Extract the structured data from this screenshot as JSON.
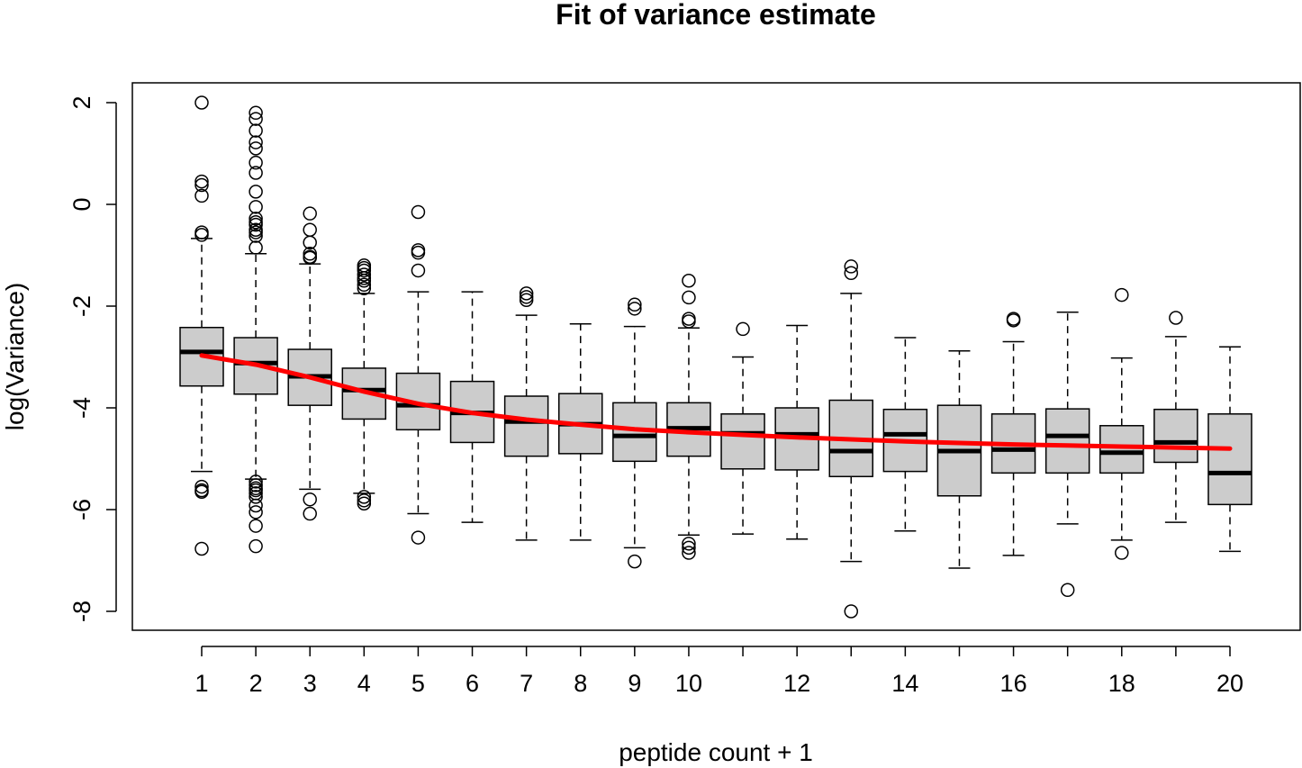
{
  "chart_data": {
    "type": "boxplot",
    "title": "Fit of variance estimate",
    "xlabel": "peptide count + 1",
    "ylabel": "log(Variance)",
    "ylim": [
      -8.2,
      2.4
    ],
    "yticks": [
      2,
      0,
      -2,
      -4,
      -6,
      -8
    ],
    "xticks": [
      1,
      2,
      3,
      4,
      5,
      6,
      7,
      8,
      9,
      10,
      12,
      14,
      16,
      18,
      20
    ],
    "xtick_marks": [
      1,
      2,
      3,
      4,
      5,
      6,
      7,
      8,
      9,
      10,
      11,
      12,
      13,
      14,
      15,
      16,
      17,
      18,
      19,
      20
    ],
    "box_fill": "#cccccc",
    "fit_color": "#ff0000",
    "boxes": [
      {
        "x": 1,
        "q1": -3.57,
        "median": -2.9,
        "q3": -2.42,
        "wlo": -5.25,
        "whi": -0.67,
        "outliers": [
          2.0,
          0.45,
          0.38,
          0.17,
          -0.55,
          -0.6,
          -5.55,
          -5.62,
          -5.65,
          -6.77
        ]
      },
      {
        "x": 2,
        "q1": -3.73,
        "median": -3.12,
        "q3": -2.62,
        "wlo": -5.4,
        "whi": -0.97,
        "outliers": [
          1.8,
          1.68,
          1.45,
          1.22,
          1.1,
          0.82,
          0.62,
          0.25,
          -0.05,
          -0.28,
          -0.35,
          -0.4,
          -0.5,
          -0.55,
          -0.62,
          -0.85,
          -5.45,
          -5.52,
          -5.58,
          -5.62,
          -5.68,
          -5.75,
          -5.92,
          -6.05,
          -6.32,
          -6.72
        ]
      },
      {
        "x": 3,
        "q1": -3.95,
        "median": -3.38,
        "q3": -2.85,
        "wlo": -5.6,
        "whi": -1.17,
        "outliers": [
          -0.18,
          -0.5,
          -0.75,
          -0.97,
          -1.03,
          -1.05,
          -5.8,
          -6.08
        ]
      },
      {
        "x": 4,
        "q1": -4.22,
        "median": -3.65,
        "q3": -3.22,
        "wlo": -5.68,
        "whi": -1.75,
        "outliers": [
          -1.2,
          -1.25,
          -1.3,
          -1.38,
          -1.45,
          -1.5,
          -1.58,
          -1.65,
          -5.75,
          -5.82,
          -5.88
        ]
      },
      {
        "x": 5,
        "q1": -4.43,
        "median": -3.95,
        "q3": -3.32,
        "wlo": -6.08,
        "whi": -1.72,
        "outliers": [
          -0.15,
          -0.9,
          -0.95,
          -1.3,
          -6.55
        ]
      },
      {
        "x": 6,
        "q1": -4.68,
        "median": -4.1,
        "q3": -3.48,
        "wlo": -6.25,
        "whi": -1.72,
        "outliers": []
      },
      {
        "x": 7,
        "q1": -4.95,
        "median": -4.27,
        "q3": -3.77,
        "wlo": -6.6,
        "whi": -2.18,
        "outliers": [
          -1.75,
          -1.82,
          -1.88
        ]
      },
      {
        "x": 8,
        "q1": -4.9,
        "median": -4.32,
        "q3": -3.72,
        "wlo": -6.6,
        "whi": -2.35,
        "outliers": []
      },
      {
        "x": 9,
        "q1": -5.05,
        "median": -4.55,
        "q3": -3.9,
        "wlo": -6.75,
        "whi": -2.4,
        "outliers": [
          -1.97,
          -2.05,
          -7.02
        ]
      },
      {
        "x": 10,
        "q1": -4.95,
        "median": -4.4,
        "q3": -3.9,
        "wlo": -6.5,
        "whi": -2.43,
        "outliers": [
          -1.5,
          -1.83,
          -2.25,
          -2.3,
          -6.67,
          -6.75,
          -6.85
        ]
      },
      {
        "x": 11,
        "q1": -5.2,
        "median": -4.5,
        "q3": -4.12,
        "wlo": -6.48,
        "whi": -3.0,
        "outliers": [
          -2.45
        ]
      },
      {
        "x": 12,
        "q1": -5.22,
        "median": -4.52,
        "q3": -4.0,
        "wlo": -6.58,
        "whi": -2.38,
        "outliers": []
      },
      {
        "x": 13,
        "q1": -5.35,
        "median": -4.85,
        "q3": -3.85,
        "wlo": -7.02,
        "whi": -1.75,
        "outliers": [
          -1.22,
          -1.35,
          -8.0
        ]
      },
      {
        "x": 14,
        "q1": -5.25,
        "median": -4.52,
        "q3": -4.03,
        "wlo": -6.42,
        "whi": -2.62,
        "outliers": []
      },
      {
        "x": 15,
        "q1": -5.73,
        "median": -4.85,
        "q3": -3.95,
        "wlo": -7.15,
        "whi": -2.88,
        "outliers": []
      },
      {
        "x": 16,
        "q1": -5.28,
        "median": -4.82,
        "q3": -4.12,
        "wlo": -6.9,
        "whi": -2.7,
        "outliers": [
          -2.25,
          -2.28
        ]
      },
      {
        "x": 17,
        "q1": -5.28,
        "median": -4.55,
        "q3": -4.02,
        "wlo": -6.28,
        "whi": -2.12,
        "outliers": [
          -7.58
        ]
      },
      {
        "x": 18,
        "q1": -5.28,
        "median": -4.88,
        "q3": -4.35,
        "wlo": -6.6,
        "whi": -3.02,
        "outliers": [
          -1.78,
          -6.85
        ]
      },
      {
        "x": 19,
        "q1": -5.07,
        "median": -4.68,
        "q3": -4.03,
        "wlo": -6.25,
        "whi": -2.6,
        "outliers": [
          -2.23
        ]
      },
      {
        "x": 20,
        "q1": -5.9,
        "median": -5.28,
        "q3": -4.12,
        "wlo": -6.82,
        "whi": -2.8,
        "outliers": []
      }
    ],
    "fit_line": {
      "x": [
        1,
        2,
        3,
        4,
        5,
        6,
        7,
        8,
        9,
        10,
        11,
        12,
        13,
        14,
        15,
        16,
        17,
        18,
        19,
        20
      ],
      "y": [
        -2.97,
        -3.15,
        -3.4,
        -3.68,
        -3.92,
        -4.1,
        -4.23,
        -4.33,
        -4.42,
        -4.48,
        -4.53,
        -4.58,
        -4.62,
        -4.66,
        -4.69,
        -4.72,
        -4.74,
        -4.76,
        -4.78,
        -4.8
      ]
    }
  }
}
